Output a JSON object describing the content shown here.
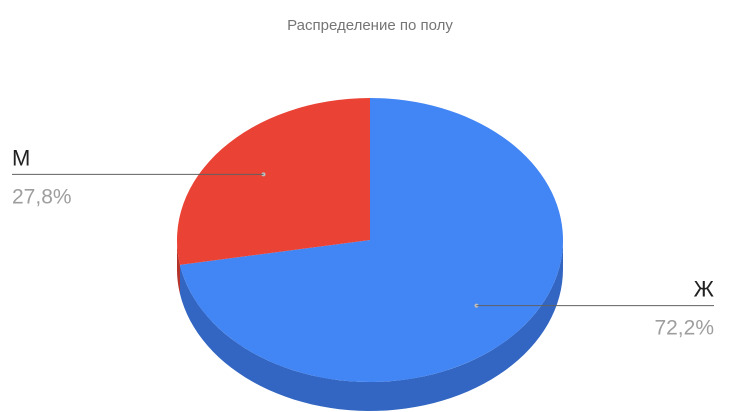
{
  "chart_data": {
    "type": "pie",
    "style": "3d",
    "title": "Распределение по полу",
    "slices": [
      {
        "label": "Ж",
        "value": 72.2,
        "value_label": "72,2%",
        "color": "#4285f4",
        "side_color": "#3266c2"
      },
      {
        "label": "М",
        "value": 27.8,
        "value_label": "27,8%",
        "color": "#ea4335",
        "side_color": "#b5322a"
      }
    ],
    "legend": "none",
    "labels": "outside-with-leader-lines"
  }
}
